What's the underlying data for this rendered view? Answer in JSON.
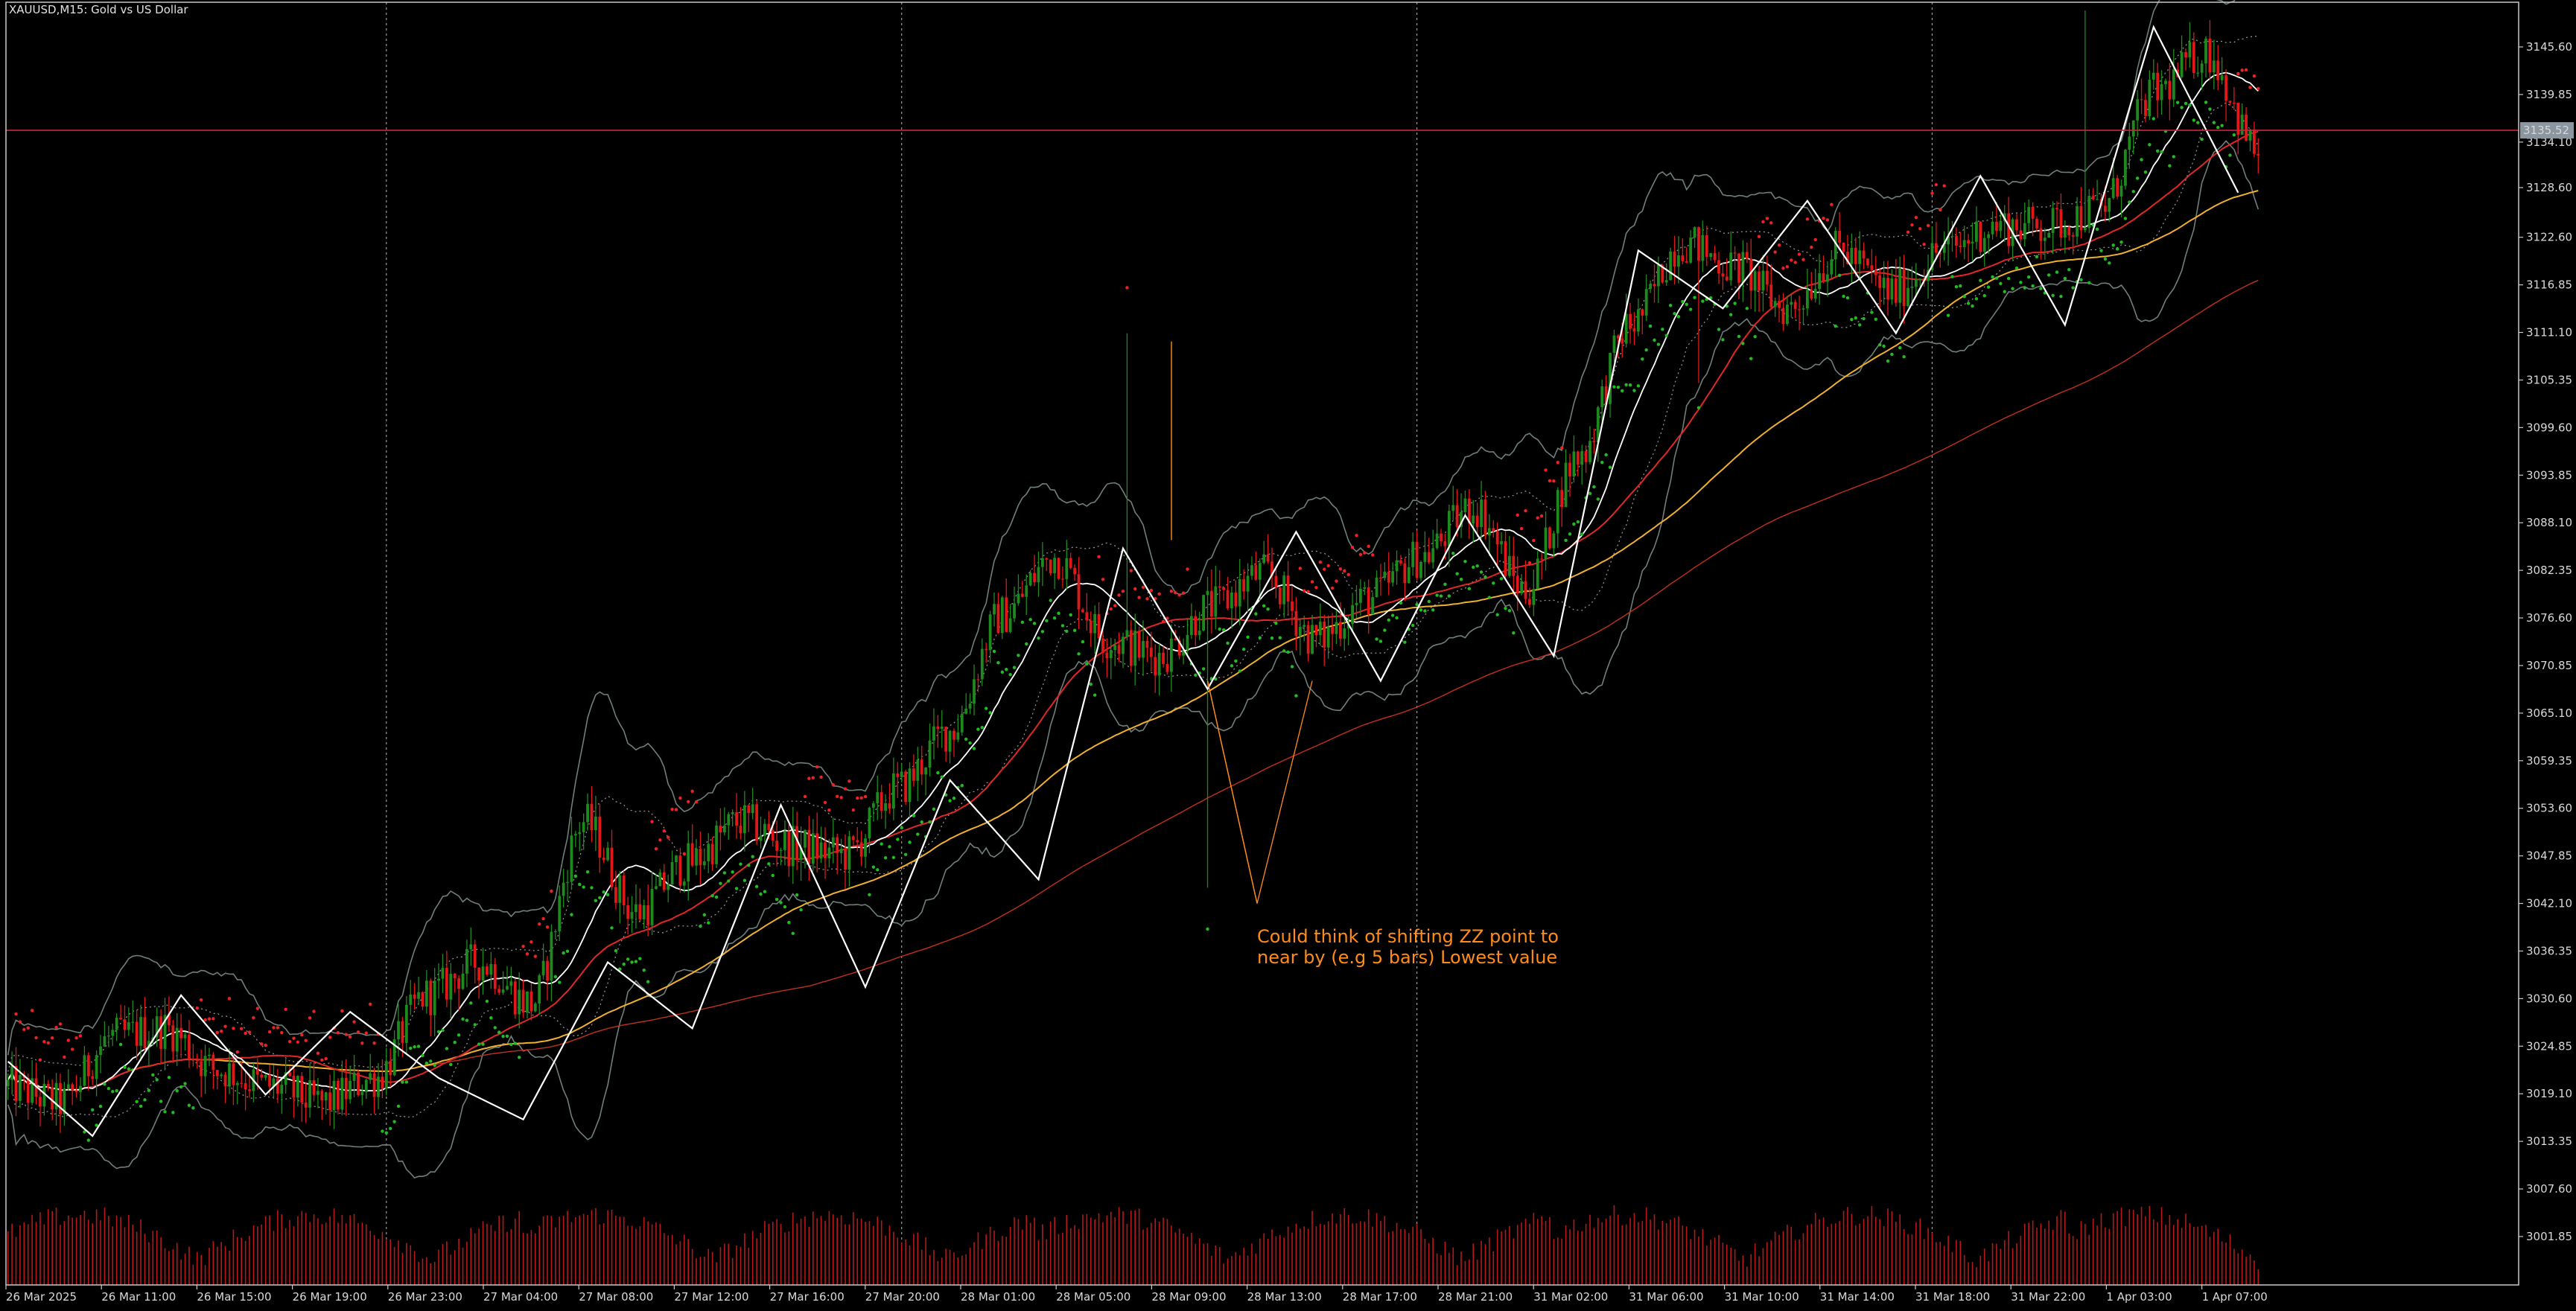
{
  "chart_data": {
    "type": "candlestick",
    "title": "XAUUSD,M15:  Gold vs US Dollar",
    "ylim": [
      2996.0,
      3151.0
    ],
    "y_ticks": [
      "3145.60",
      "3139.85",
      "3134.10",
      "3128.60",
      "3122.60",
      "3116.85",
      "3111.10",
      "3105.35",
      "3099.60",
      "3093.85",
      "3088.10",
      "3082.35",
      "3076.60",
      "3070.85",
      "3065.10",
      "3059.35",
      "3053.60",
      "3047.85",
      "3042.10",
      "3036.35",
      "3030.60",
      "3024.85",
      "3019.10",
      "3013.35",
      "3007.60",
      "3001.85"
    ],
    "x_ticks": [
      "26 Mar 2025",
      "26 Mar 11:00",
      "26 Mar 15:00",
      "26 Mar 19:00",
      "26 Mar 23:00",
      "27 Mar 04:00",
      "27 Mar 08:00",
      "27 Mar 12:00",
      "27 Mar 16:00",
      "27 Mar 20:00",
      "28 Mar 01:00",
      "28 Mar 05:00",
      "28 Mar 09:00",
      "28 Mar 13:00",
      "28 Mar 17:00",
      "28 Mar 21:00",
      "31 Mar 02:00",
      "31 Mar 06:00",
      "31 Mar 10:00",
      "31 Mar 14:00",
      "31 Mar 18:00",
      "31 Mar 22:00",
      "1 Apr 03:00",
      "1 Apr 07:00"
    ],
    "current_price": "3135.52",
    "zigzag_pivots": [
      3023,
      3014,
      3031,
      3019,
      3029,
      3021,
      3016,
      3035,
      3027,
      3054,
      3032,
      3057,
      3045,
      3085,
      3068,
      3087,
      3069,
      3089,
      3072,
      3121,
      3114,
      3127,
      3111,
      3130,
      3112,
      3148,
      3128
    ],
    "close_anchors": [
      3020,
      3018,
      3026,
      3027,
      3022,
      3020,
      3018,
      3021,
      3031,
      3035,
      3030,
      3052,
      3041,
      3047,
      3052,
      3049,
      3048,
      3056,
      3063,
      3077,
      3084,
      3074,
      3072,
      3078,
      3082,
      3074,
      3079,
      3084,
      3090,
      3080,
      3096,
      3112,
      3122,
      3119,
      3114,
      3121,
      3116,
      3121,
      3124,
      3124,
      3126,
      3140,
      3145,
      3133
    ],
    "annotation": "Could think of shifting ZZ point to\nnear by (e.g 5 bars) Lowest value",
    "grid": false,
    "colors": {
      "background": "#000000",
      "bull_candle": "#1e8a1e",
      "bear_candle": "#e01818",
      "zigzag": "#ffffff",
      "bollinger": "#6f7f7a",
      "ma_red": "#e02828",
      "ma_orange": "#f0b030",
      "sar_up": "#22bb22",
      "sar_down": "#ee2222",
      "volume": "#b81818",
      "price_line": "#d02040",
      "annotation": "#ff8c1a",
      "axis": "#c8c8c8"
    }
  }
}
